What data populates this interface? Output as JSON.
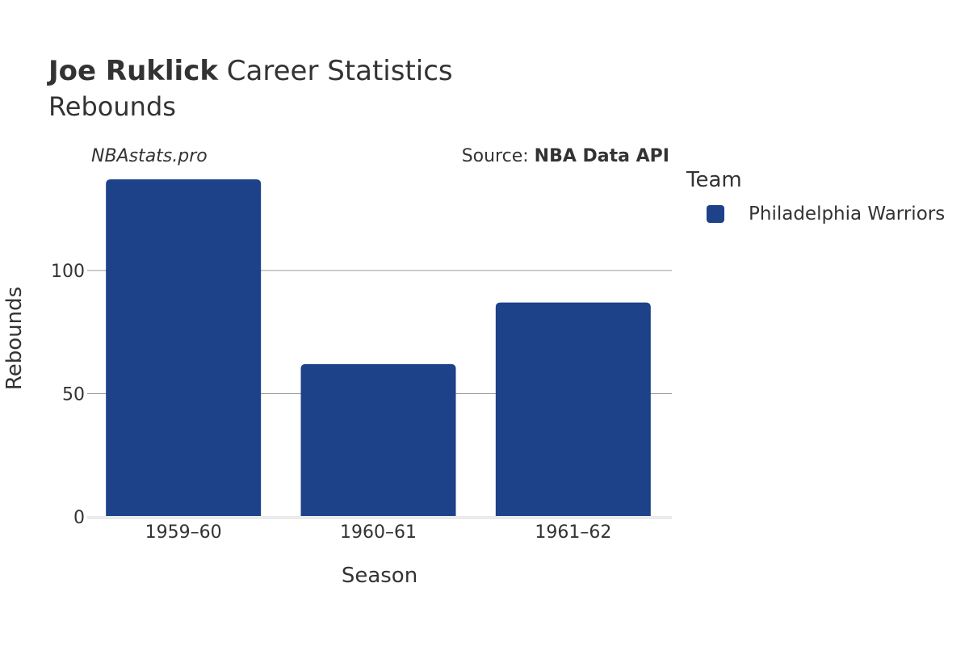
{
  "header": {
    "player_name": "Joe Ruklick",
    "title_suffix": "Career Statistics",
    "subtitle": "Rebounds"
  },
  "watermark": "NBAstats.pro",
  "source": {
    "prefix": "Source: ",
    "name": "NBA Data API"
  },
  "legend": {
    "title": "Team",
    "items": [
      {
        "label": "Philadelphia Warriors",
        "color": "#1d428a"
      }
    ]
  },
  "chart_data": {
    "type": "bar",
    "categories": [
      "1959–60",
      "1960–61",
      "1961–62"
    ],
    "series": [
      {
        "name": "Philadelphia Warriors",
        "values": [
          137,
          62,
          87
        ]
      }
    ],
    "xlabel": "Season",
    "ylabel": "Rebounds",
    "ylim": [
      0,
      140
    ],
    "yticks": [
      0,
      50,
      100
    ],
    "grid": true,
    "legend_position": "right",
    "bar_color": "#1d428a"
  }
}
